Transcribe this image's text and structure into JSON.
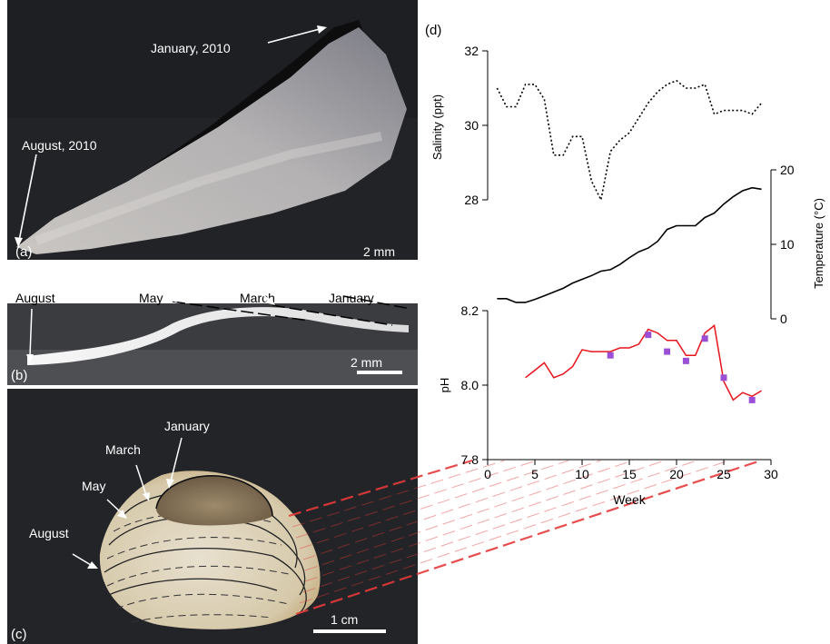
{
  "panel_a": {
    "letter": "(a)",
    "label_top": "January, 2010",
    "label_left": "August, 2010",
    "scale_label": "2 mm"
  },
  "panel_b": {
    "letter": "(b)",
    "labels": [
      "August",
      "May",
      "March",
      "January"
    ],
    "scale_label": "2 mm"
  },
  "panel_c": {
    "letter": "(c)",
    "labels": [
      "January",
      "March",
      "May",
      "August"
    ],
    "scale_label": "1 cm"
  },
  "panel_d": {
    "letter": "(d)",
    "xlabel": "Week",
    "xticks": [
      "0",
      "5",
      "10",
      "15",
      "20",
      "25",
      "30"
    ]
  },
  "chart_data": [
    {
      "type": "line",
      "ylabel": "Salinity (ppt)",
      "xlim": [
        0,
        30
      ],
      "ylim": [
        28,
        32
      ],
      "yticks": [
        "32",
        "30",
        "28"
      ],
      "style": "dotted",
      "color": "#000000",
      "x": [
        1,
        2,
        3,
        4,
        5,
        6,
        7,
        8,
        9,
        10,
        11,
        12,
        13,
        14,
        15,
        16,
        17,
        18,
        19,
        20,
        21,
        22,
        23,
        24,
        25,
        26,
        27,
        28,
        29
      ],
      "values": [
        31.0,
        30.5,
        30.5,
        31.1,
        31.1,
        30.7,
        29.2,
        29.2,
        29.7,
        29.7,
        28.5,
        28.0,
        29.3,
        29.6,
        29.8,
        30.2,
        30.6,
        30.9,
        31.1,
        31.2,
        31.0,
        31.0,
        31.1,
        30.3,
        30.4,
        30.4,
        30.4,
        30.3,
        30.6
      ]
    },
    {
      "type": "line",
      "ylabel": "Temperature (°C)",
      "xlim": [
        0,
        30
      ],
      "ylim": [
        0,
        20
      ],
      "yticks": [
        "20",
        "10",
        "0"
      ],
      "style": "solid",
      "color": "#000000",
      "x": [
        1,
        2,
        3,
        4,
        5,
        6,
        7,
        8,
        9,
        10,
        11,
        12,
        13,
        14,
        15,
        16,
        17,
        18,
        19,
        20,
        21,
        22,
        23,
        24,
        25,
        26,
        27,
        28,
        29
      ],
      "values": [
        2.7,
        2.7,
        2.2,
        2.2,
        2.6,
        3.1,
        3.6,
        4.1,
        4.8,
        5.3,
        5.8,
        6.4,
        6.6,
        7.3,
        8.2,
        9.0,
        9.5,
        10.4,
        12.0,
        12.5,
        12.5,
        12.5,
        13.6,
        14.2,
        15.4,
        16.4,
        17.2,
        17.6,
        17.4
      ]
    },
    {
      "type": "line+scatter",
      "ylabel": "pH",
      "xlim": [
        0,
        30
      ],
      "ylim": [
        7.8,
        8.2
      ],
      "yticks": [
        "8.2",
        "8.0",
        "7.8"
      ],
      "line_color": "#e8141b",
      "marker_color": "#9b4fd6",
      "line": {
        "x": [
          4,
          5,
          6,
          7,
          8,
          9,
          10,
          11,
          12,
          13,
          14,
          15,
          16,
          17,
          18,
          19,
          20,
          21,
          22,
          23,
          24,
          25,
          26,
          27,
          28,
          29
        ],
        "values": [
          8.02,
          8.04,
          8.06,
          8.02,
          8.03,
          8.05,
          8.095,
          8.09,
          8.09,
          8.09,
          8.1,
          8.1,
          8.11,
          8.15,
          8.14,
          8.12,
          8.12,
          8.08,
          8.08,
          8.14,
          8.16,
          8.01,
          7.96,
          7.98,
          7.97,
          7.985
        ]
      },
      "markers": {
        "x": [
          13,
          17,
          19,
          21,
          23,
          25,
          28
        ],
        "values": [
          8.08,
          8.135,
          8.09,
          8.065,
          8.125,
          8.02,
          7.96
        ]
      }
    }
  ]
}
